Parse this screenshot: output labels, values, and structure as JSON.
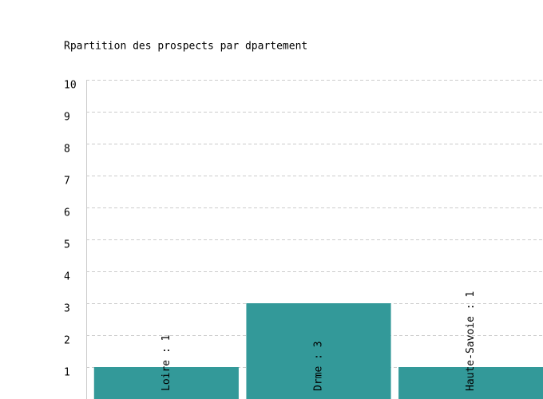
{
  "chart_data": {
    "type": "bar",
    "title": "Rpartition des prospects par dpartement",
    "values": [
      1,
      3,
      1
    ],
    "value_labels": [
      "Loire : 1",
      "Drme : 3",
      "Haute-Savoie : 1"
    ],
    "color": "#339999",
    "ylim": [
      0,
      10
    ],
    "yticks": [
      1,
      2,
      3,
      4,
      5,
      6,
      7,
      8,
      9,
      10
    ],
    "grid": true
  }
}
